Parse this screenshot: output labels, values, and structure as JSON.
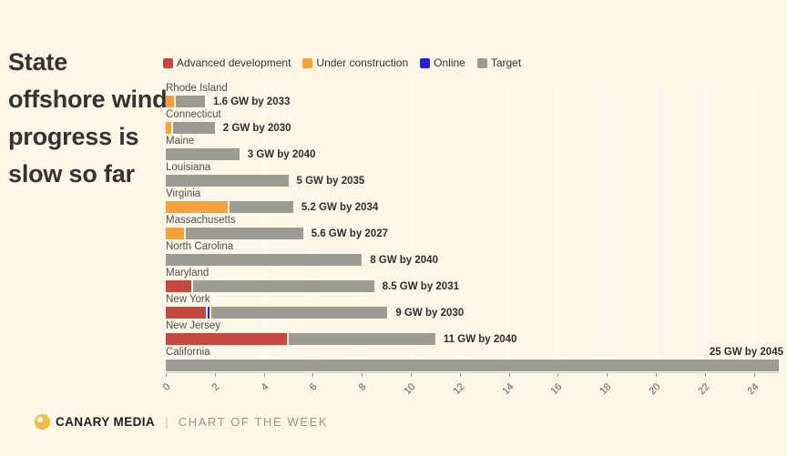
{
  "chart_data": {
    "type": "bar",
    "orientation": "horizontal-stacked",
    "title": "State offshore wind progress is slow so far",
    "unit": "GW",
    "legend_position": "top",
    "grid": true,
    "legend": [
      {
        "key": "advanced_development",
        "label": "Advanced development",
        "color": "#c5473e"
      },
      {
        "key": "under_construction",
        "label": "Under construction",
        "color": "#f9a13c"
      },
      {
        "key": "online",
        "label": "Online",
        "color": "#2121dd"
      },
      {
        "key": "target",
        "label": "Target",
        "color": "#9c9b94"
      }
    ],
    "axis": {
      "min": 0,
      "max": 25,
      "tick_interval": 2,
      "ticks": [
        0,
        2,
        4,
        6,
        8,
        10,
        12,
        14,
        16,
        18,
        20,
        22,
        24
      ]
    },
    "rows": [
      {
        "state": "Rhode Island",
        "annotation": "1.6 GW by 2033",
        "total": 1.6,
        "segments": [
          {
            "key": "under_construction",
            "value": 0.4
          },
          {
            "key": "target",
            "value": 1.2
          }
        ]
      },
      {
        "state": "Connecticut",
        "annotation": "2 GW by 2030",
        "total": 2,
        "segments": [
          {
            "key": "under_construction",
            "value": 0.3
          },
          {
            "key": "target",
            "value": 1.7
          }
        ]
      },
      {
        "state": "Maine",
        "annotation": "3 GW by 2040",
        "total": 3,
        "segments": [
          {
            "key": "target",
            "value": 3
          }
        ]
      },
      {
        "state": "Louisiana",
        "annotation": "5 GW by 2035",
        "total": 5,
        "segments": [
          {
            "key": "target",
            "value": 5
          }
        ]
      },
      {
        "state": "Virginia",
        "annotation": "5.2 GW by 2034",
        "total": 5.2,
        "segments": [
          {
            "key": "under_construction",
            "value": 2.6
          },
          {
            "key": "target",
            "value": 2.6
          }
        ]
      },
      {
        "state": "Massachusetts",
        "annotation": "5.6 GW by 2027",
        "total": 5.6,
        "segments": [
          {
            "key": "under_construction",
            "value": 0.8
          },
          {
            "key": "target",
            "value": 4.8
          }
        ]
      },
      {
        "state": "North Carolina",
        "annotation": "8 GW by 2040",
        "total": 8,
        "segments": [
          {
            "key": "target",
            "value": 8
          }
        ]
      },
      {
        "state": "Maryland",
        "annotation": "8.5 GW by 2031",
        "total": 8.5,
        "segments": [
          {
            "key": "advanced_development",
            "value": 1.1
          },
          {
            "key": "target",
            "value": 7.4
          }
        ]
      },
      {
        "state": "New York",
        "annotation": "9 GW by 2030",
        "total": 9,
        "segments": [
          {
            "key": "advanced_development",
            "value": 1.7
          },
          {
            "key": "online",
            "value": 0.1
          },
          {
            "key": "target",
            "value": 7.2
          }
        ]
      },
      {
        "state": "New Jersey",
        "annotation": "11 GW by 2040",
        "total": 11,
        "segments": [
          {
            "key": "advanced_development",
            "value": 5.0
          },
          {
            "key": "target",
            "value": 6.0
          }
        ]
      },
      {
        "state": "California",
        "annotation": "25 GW by 2045",
        "total": 25,
        "annotation_position": "above",
        "segments": [
          {
            "key": "target",
            "value": 25
          }
        ]
      }
    ]
  },
  "footer": {
    "brand": "CANARY MEDIA",
    "separator": "|",
    "series": "CHART OF THE WEEK"
  },
  "colors": {
    "background": "#fdf7e7",
    "title": "#333333",
    "state_label": "#4d4d4d",
    "annotation": "#2e2e2e",
    "tick_label": "#5f5f5f",
    "logo_gold": "#efbc45"
  }
}
